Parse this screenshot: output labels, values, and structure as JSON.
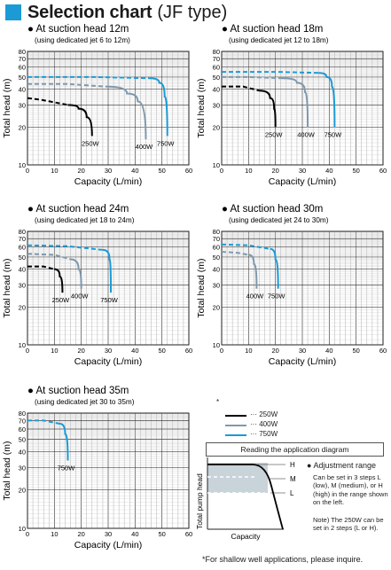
{
  "header": {
    "title": "Selection chart",
    "subtitle": "(JF type)"
  },
  "colors": {
    "accent": "#1b9ad6",
    "w250": "#000000",
    "w400": "#7f98ad",
    "w750": "#1b9ad6",
    "shade": "#c9d3da"
  },
  "axes": {
    "xlabel": "Capacity (L/min)",
    "ylabel": "Total head (m)",
    "xticks": [
      "0",
      "10",
      "20",
      "30",
      "40",
      "50",
      "60"
    ],
    "yticks": [
      "10",
      "20",
      "30",
      "40",
      "50",
      "60",
      "70",
      "80"
    ]
  },
  "chart_data": [
    {
      "type": "line",
      "title": "At suction head 12m",
      "subtitle": "(using dedicated jet 6 to 12m)",
      "xlabel": "Capacity (L/min)",
      "ylabel": "Total head (m)",
      "xlim": [
        0,
        60
      ],
      "ylim": [
        10,
        80
      ],
      "yscale": "log",
      "series": [
        {
          "name": "250W",
          "label": "250W",
          "points": [
            [
              0,
              34
            ],
            [
              5,
              33
            ],
            [
              15,
              30
            ],
            [
              19,
              28
            ],
            [
              22,
              24
            ],
            [
              24,
              17
            ]
          ]
        },
        {
          "name": "400W",
          "label": "400W",
          "points": [
            [
              0,
              44
            ],
            [
              15,
              44
            ],
            [
              29,
              42
            ],
            [
              37,
              37
            ],
            [
              41,
              32
            ],
            [
              44,
              16
            ]
          ]
        },
        {
          "name": "750W",
          "label": "750W",
          "points": [
            [
              0,
              50
            ],
            [
              25,
              50
            ],
            [
              45,
              49
            ],
            [
              49,
              45
            ],
            [
              51,
              35
            ],
            [
              52,
              17
            ]
          ]
        }
      ]
    },
    {
      "type": "line",
      "title": "At suction head 18m",
      "subtitle": "(using dedicated jet 12 to 18m)",
      "xlabel": "Capacity (L/min)",
      "ylabel": "Total head (m)",
      "xlim": [
        0,
        60
      ],
      "ylim": [
        10,
        80
      ],
      "yscale": "log",
      "series": [
        {
          "name": "250W",
          "label": "250W",
          "points": [
            [
              0,
              42
            ],
            [
              8,
              42
            ],
            [
              14,
              39
            ],
            [
              18,
              34
            ],
            [
              19.5,
              28
            ],
            [
              20,
              20
            ]
          ]
        },
        {
          "name": "400W",
          "label": "400W",
          "points": [
            [
              0,
              50
            ],
            [
              10,
              50
            ],
            [
              22,
              49
            ],
            [
              28,
              45
            ],
            [
              31,
              38
            ],
            [
              32,
              20
            ]
          ]
        },
        {
          "name": "750W",
          "label": "750W",
          "points": [
            [
              0,
              55
            ],
            [
              20,
              55
            ],
            [
              36,
              54
            ],
            [
              39,
              50
            ],
            [
              41,
              42
            ],
            [
              42,
              20
            ]
          ]
        }
      ]
    },
    {
      "type": "line",
      "title": "At suction head 24m",
      "subtitle": "(using dedicated jet 18 to 24m)",
      "xlabel": "Capacity (L/min)",
      "ylabel": "Total head (m)",
      "xlim": [
        0,
        60
      ],
      "ylim": [
        10,
        80
      ],
      "yscale": "log",
      "series": [
        {
          "name": "250W",
          "label": "250W",
          "points": [
            [
              0,
              42
            ],
            [
              6,
              42
            ],
            [
              10,
              40
            ],
            [
              12,
              35
            ],
            [
              13,
              26
            ]
          ]
        },
        {
          "name": "400W",
          "label": "400W",
          "points": [
            [
              0,
              53
            ],
            [
              10,
              52
            ],
            [
              16,
              48
            ],
            [
              19,
              40
            ],
            [
              20,
              28
            ]
          ]
        },
        {
          "name": "750W",
          "label": "750W",
          "points": [
            [
              0,
              62
            ],
            [
              15,
              61
            ],
            [
              28,
              57
            ],
            [
              30.5,
              48
            ],
            [
              31,
              26
            ]
          ]
        }
      ]
    },
    {
      "type": "line",
      "title": "At suction head 30m",
      "subtitle": "(using dedicated jet 24 to 30m)",
      "xlabel": "Capacity (L/min)",
      "ylabel": "Total head (m)",
      "xlim": [
        0,
        60
      ],
      "ylim": [
        10,
        80
      ],
      "yscale": "log",
      "series": [
        {
          "name": "400W",
          "label": "400W",
          "points": [
            [
              0,
              55
            ],
            [
              6,
              54
            ],
            [
              10,
              52
            ],
            [
              12,
              44
            ],
            [
              13,
              28
            ]
          ]
        },
        {
          "name": "750W",
          "label": "750W",
          "points": [
            [
              0,
              63
            ],
            [
              10,
              62
            ],
            [
              18,
              58
            ],
            [
              20,
              48
            ],
            [
              21,
              28
            ]
          ]
        }
      ]
    },
    {
      "type": "line",
      "title": "At suction head 35m",
      "subtitle": "(using dedicated jet 30 to 35m)",
      "xlabel": "Capacity (L/min)",
      "ylabel": "Total head (m)",
      "xlim": [
        0,
        60
      ],
      "ylim": [
        10,
        80
      ],
      "yscale": "log",
      "series": [
        {
          "name": "750W",
          "label": "750W",
          "points": [
            [
              0,
              70
            ],
            [
              6,
              70
            ],
            [
              12,
              66
            ],
            [
              14,
              55
            ],
            [
              15,
              34
            ]
          ]
        }
      ]
    }
  ],
  "legend": {
    "marker": "*",
    "items": [
      {
        "label": "··· 250W",
        "color": "#000000"
      },
      {
        "label": "··· 400W",
        "color": "#7f98ad"
      },
      {
        "label": "··· 750W",
        "color": "#1b9ad6"
      }
    ]
  },
  "application_diagram": {
    "title": "Reading the application diagram",
    "xlabel": "Capacity",
    "ylabel": "Total pump head",
    "levels": [
      "H",
      "M",
      "L"
    ]
  },
  "adjustment": {
    "heading": "Adjustment range",
    "text": "Can be set in 3 steps L (low), M (medium), or H (high) in the range shown on the left.",
    "note": "Note) The 250W can be set in 2 steps (L or H)."
  },
  "footnote": "*For shallow well applications, please inquire."
}
